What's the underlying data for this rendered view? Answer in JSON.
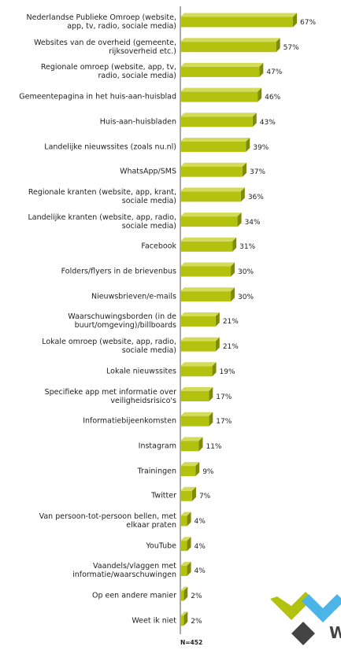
{
  "chart_data": {
    "type": "bar",
    "orientation": "horizontal",
    "categories": [
      "Nederlandse Publieke Omroep (website,\napp, tv, radio, sociale media)",
      "Websites van de overheid (gemeente,\nrijksoverheid etc.)",
      "Regionale omroep (website, app, tv,\nradio, sociale media)",
      "Gemeentepagina in het huis-aan-huisblad",
      "Huis-aan-huisbladen",
      "Landelijke nieuwssites (zoals nu.nl)",
      "WhatsApp/SMS",
      "Regionale kranten (website, app, krant,\nsociale media)",
      "Landelijke kranten (website, app, radio,\nsociale media)",
      "Facebook",
      "Folders/flyers in de brievenbus",
      "Nieuwsbrieven/e-mails",
      "Waarschuwingsborden (in de\nbuurt/omgeving)/billboards",
      "Lokale omroep (website, app, radio,\nsociale media)",
      "Lokale nieuwssites",
      "Specifieke app met informatie over\nveiligheidsrisico's",
      "Informatiebijeenkomsten",
      "Instagram",
      "Trainingen",
      "Twitter",
      "Van persoon-tot-persoon bellen, met\nelkaar praten",
      "YouTube",
      "Vaandels/vlaggen met\ninformatie/waarschuwingen",
      "Op een andere manier",
      "Weet ik niet"
    ],
    "values": [
      67,
      57,
      47,
      46,
      43,
      39,
      37,
      36,
      34,
      31,
      30,
      30,
      21,
      21,
      19,
      17,
      17,
      11,
      9,
      7,
      4,
      4,
      4,
      2,
      2
    ],
    "value_labels": [
      "67%",
      "57%",
      "47%",
      "46%",
      "43%",
      "39%",
      "37%",
      "36%",
      "34%",
      "31%",
      "30%",
      "30%",
      "21%",
      "21%",
      "19%",
      "17%",
      "17%",
      "11%",
      "9%",
      "7%",
      "4%",
      "4%",
      "4%",
      "2%",
      "2%"
    ],
    "color": "#b3c20e",
    "note": "N=452"
  }
}
